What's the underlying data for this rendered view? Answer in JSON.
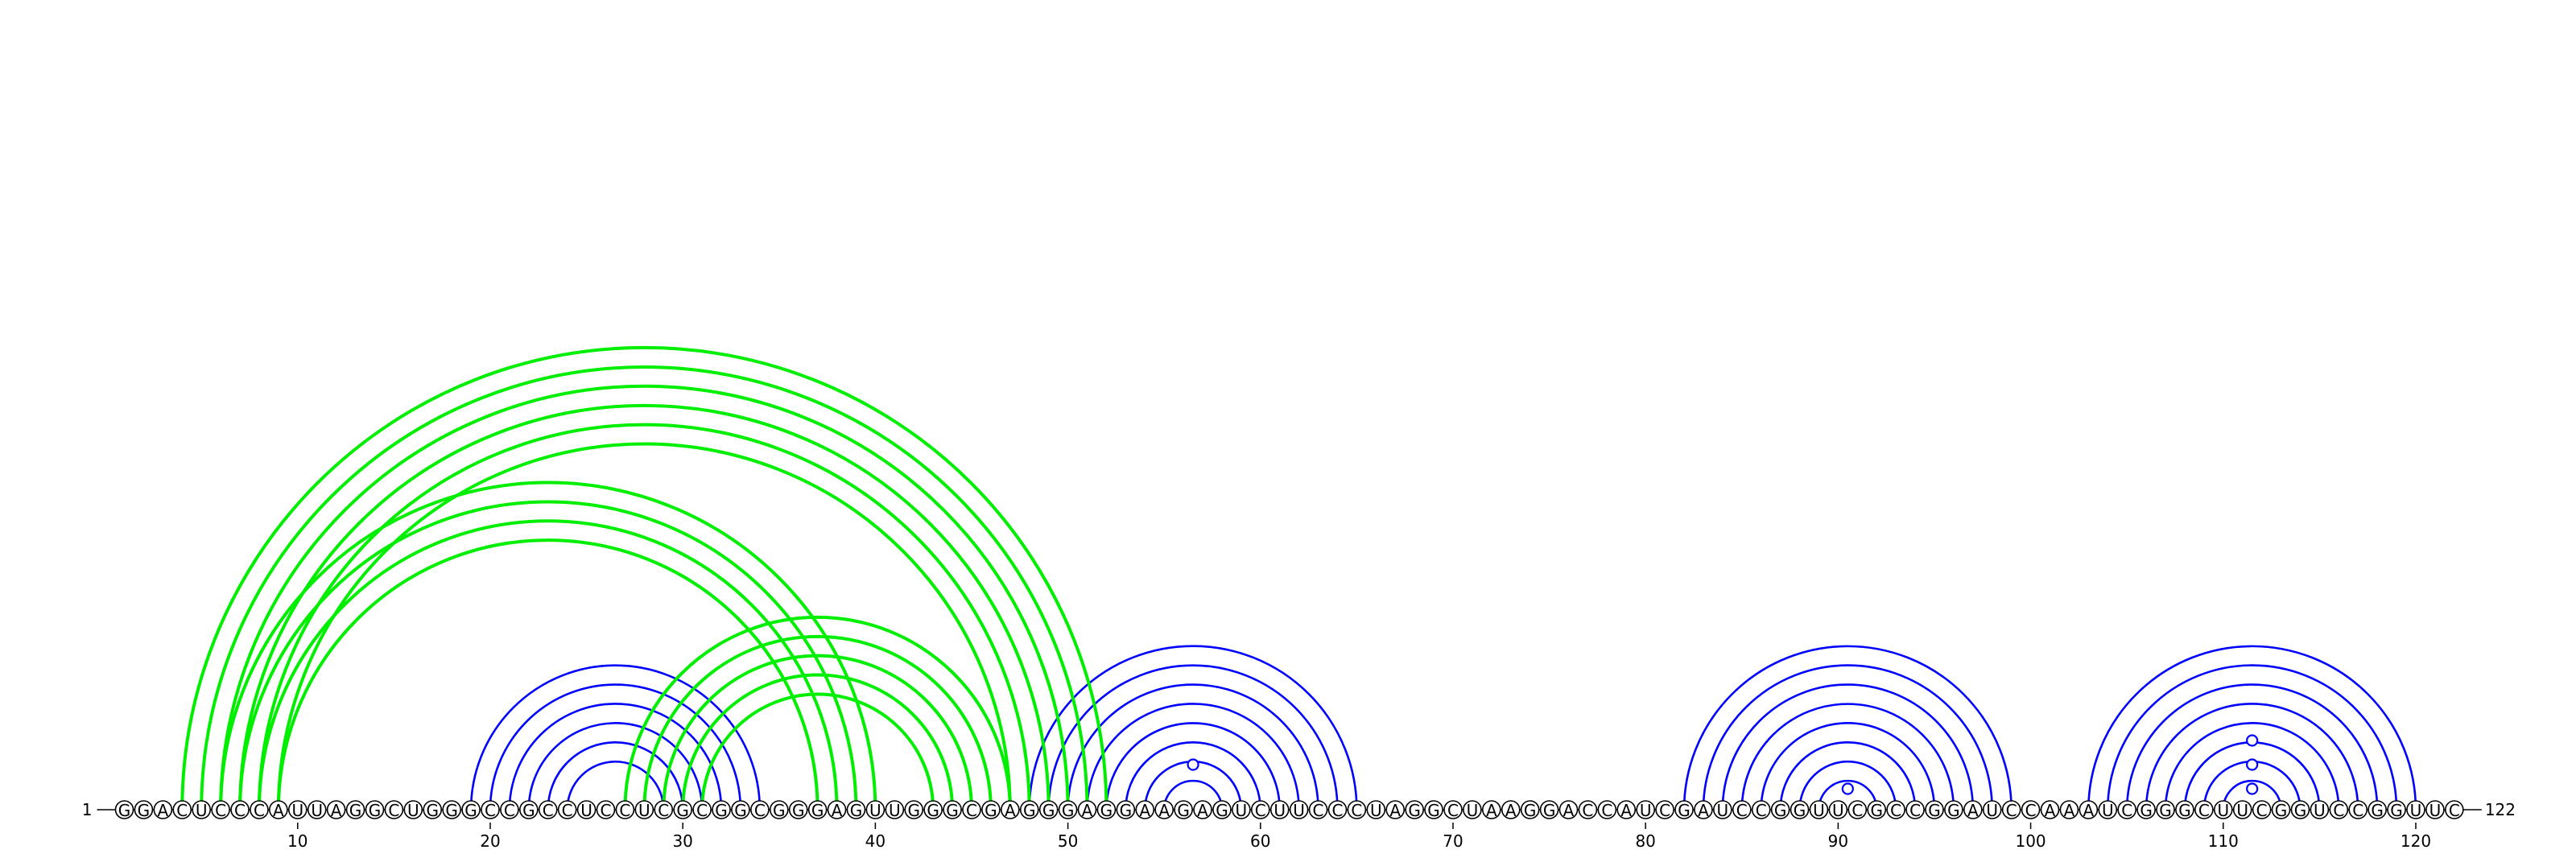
{
  "diagram": {
    "type": "rna-arc-diagram",
    "sequence": "GGACUCCCAUUAGGCUGGGCCGCCUCCUCGCGGCGGGAGUUGGGCGAGGGAGGAAGAGUCUUCCCUAGGCUAAGGACCAUCGAUCCGGUUCGCCGGAUCCAAAUCGGGCUUCGGUCCGGUUC",
    "length": 122,
    "start_label": "1",
    "end_label": "122",
    "ticks": [
      "10",
      "20",
      "30",
      "40",
      "50",
      "60",
      "70",
      "80",
      "90",
      "100",
      "110",
      "120"
    ],
    "colors": {
      "blue": "#0000ff",
      "green": "#00ee00",
      "backbone": "#000000"
    },
    "helices": [
      {
        "name": "blue-helix-1",
        "color": "blue",
        "i": 19,
        "j": 34,
        "length": 6
      },
      {
        "name": "blue-helix-2",
        "color": "blue",
        "i": 48,
        "j": 65,
        "length": 8
      },
      {
        "name": "blue-helix-3",
        "color": "blue",
        "i": 82,
        "j": 99,
        "length": 8
      },
      {
        "name": "blue-helix-4",
        "color": "blue",
        "i": 103,
        "j": 120,
        "length": 8
      },
      {
        "name": "green-helix-1",
        "color": "green",
        "i": 4,
        "j": 52,
        "length": 6
      },
      {
        "name": "green-helix-2",
        "color": "green",
        "i": 6,
        "j": 40,
        "length": 4
      },
      {
        "name": "green-helix-3",
        "color": "green",
        "i": 27,
        "j": 47,
        "length": 5
      }
    ],
    "loop_markers": [
      {
        "name": "loop-marker-56",
        "position": 56.5,
        "level": 1
      },
      {
        "name": "loop-marker-90",
        "position": 90.5,
        "level": 0
      },
      {
        "name": "loop-marker-111-a",
        "position": 111.5,
        "level": 0
      },
      {
        "name": "loop-marker-111-b",
        "position": 111.5,
        "level": 1
      },
      {
        "name": "loop-marker-111-c",
        "position": 111.5,
        "level": 2
      }
    ]
  }
}
